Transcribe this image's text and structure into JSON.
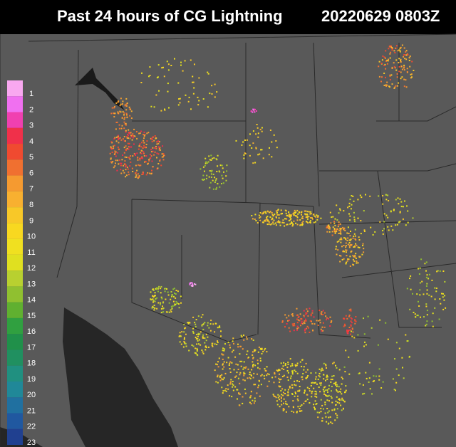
{
  "header": {
    "title": "Past 24 hours of CG Lightning",
    "timestamp": "20220629 0803Z"
  },
  "legend": {
    "labels": [
      1,
      2,
      3,
      4,
      5,
      6,
      7,
      8,
      9,
      10,
      11,
      12,
      13,
      14,
      15,
      16,
      17,
      18,
      19,
      20,
      21,
      22,
      23
    ],
    "colors": [
      "#f9a8f0",
      "#f070f0",
      "#f040b0",
      "#f0304a",
      "#f04a30",
      "#f07030",
      "#f59a30",
      "#f8b030",
      "#f8c828",
      "#f8d820",
      "#f0e020",
      "#e0e020",
      "#b8d030",
      "#90c030",
      "#60b030",
      "#30a040",
      "#20904a",
      "#209060",
      "#209080",
      "#208898",
      "#2070a0",
      "#2058a0",
      "#204090"
    ]
  }
}
